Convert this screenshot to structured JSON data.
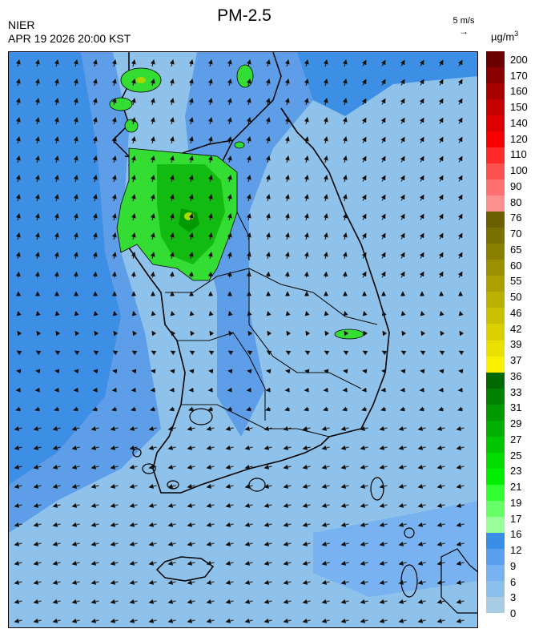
{
  "header": {
    "title": "PM-2.5",
    "agency": "NIER",
    "datetime": "APR 19 2026 20:00 KST",
    "wind_reference": "5 m/s",
    "unit_prefix": "µg/m",
    "unit_exp": "3"
  },
  "colorbar": {
    "labels": [
      "200",
      "170",
      "160",
      "150",
      "140",
      "120",
      "110",
      "100",
      "90",
      "80",
      "76",
      "70",
      "65",
      "60",
      "55",
      "50",
      "46",
      "42",
      "39",
      "37",
      "36",
      "33",
      "31",
      "29",
      "27",
      "25",
      "23",
      "21",
      "19",
      "17",
      "16",
      "12",
      "9",
      "6",
      "3",
      "0"
    ],
    "colors": [
      "#6b0000",
      "#8a0000",
      "#a80000",
      "#c40000",
      "#de0000",
      "#f70000",
      "#ff2a2a",
      "#ff5050",
      "#ff7070",
      "#ff9090",
      "#6a6000",
      "#7a7000",
      "#8a8000",
      "#9a9000",
      "#aaa000",
      "#bab000",
      "#cac000",
      "#dad000",
      "#eae000",
      "#f8f000",
      "#006a00",
      "#008200",
      "#009a00",
      "#00b000",
      "#00c600",
      "#00dc00",
      "#00ee00",
      "#30ff30",
      "#66ff66",
      "#99ff99",
      "#3a8ee8",
      "#5aa0ee",
      "#78b2f0",
      "#8cc0ec",
      "#a8cce4"
    ]
  },
  "map": {
    "background_low": "#8ec2ea",
    "background_mid": "#5e9ee8",
    "background_high": "#3d8fe6",
    "hotspot_colors": [
      "#22cc22",
      "#11aa11",
      "#a8d800"
    ]
  }
}
